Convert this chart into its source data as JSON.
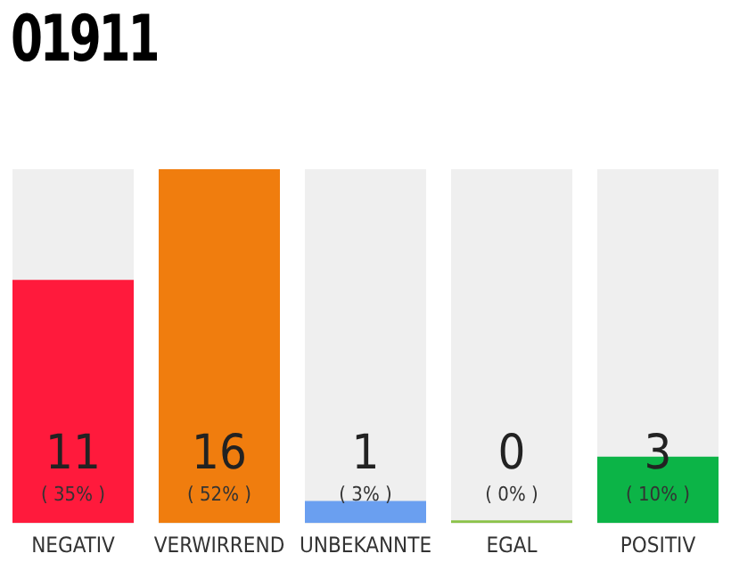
{
  "chart_data": {
    "type": "bar",
    "title": "01911",
    "categories": [
      "NEGATIV",
      "VERWIRREND",
      "UNBEKANNTE",
      "EGAL",
      "POSITIV"
    ],
    "values": [
      11,
      16,
      1,
      0,
      3
    ],
    "colors": [
      "#ff1a3c",
      "#f07d0e",
      "#6a9ff0",
      "#8bc34a",
      "#0cb447"
    ],
    "ylim": [
      0,
      16
    ],
    "data_labels": true,
    "tick_labels": "x",
    "grid": false,
    "legend": false,
    "annotations": [
      "( 35% )",
      "( 52% )",
      "( 3% )",
      "( 0% )",
      "( 10% )"
    ]
  }
}
